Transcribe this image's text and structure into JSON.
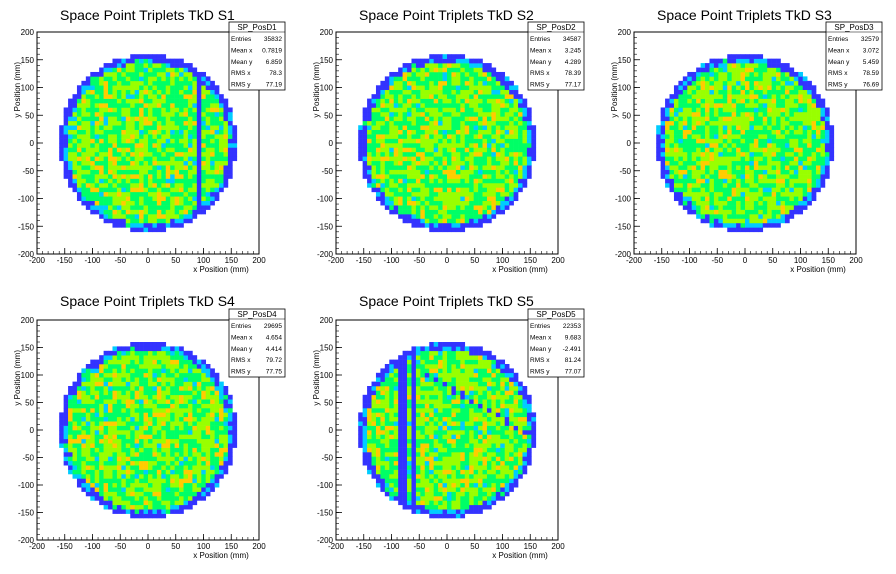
{
  "chart_data": [
    {
      "type": "heatmap",
      "title": "Space Point Triplets TkD S1",
      "xlabel": "x Position (mm)",
      "ylabel": "y Position (mm)",
      "xlim": [
        -200,
        200
      ],
      "ylim": [
        -200,
        200
      ],
      "xticks": [
        -200,
        -150,
        -100,
        -50,
        0,
        50,
        100,
        150,
        200
      ],
      "yticks": [
        -200,
        -150,
        -100,
        -50,
        0,
        50,
        100,
        150,
        200
      ],
      "stats": {
        "name": "SP_PosD1",
        "entries": "35832",
        "mean_x": "0.7819",
        "mean_y": "6.859",
        "rms_x": "78.3",
        "rms_y": "77.19"
      },
      "disk": {
        "center_x": 0,
        "center_y": 0,
        "radius": 160,
        "bin_width": 8
      },
      "features": {
        "lines": [
          {
            "pos": 95,
            "slope": 0,
            "dir": "v"
          }
        ]
      }
    },
    {
      "type": "heatmap",
      "title": "Space Point Triplets TkD S2",
      "xlabel": "x Position (mm)",
      "ylabel": "y Position (mm)",
      "xlim": [
        -200,
        200
      ],
      "ylim": [
        -200,
        200
      ],
      "xticks": [
        -200,
        -150,
        -100,
        -50,
        0,
        50,
        100,
        150,
        200
      ],
      "yticks": [
        -200,
        -150,
        -100,
        -50,
        0,
        50,
        100,
        150,
        200
      ],
      "stats": {
        "name": "SP_PosD2",
        "entries": "34587",
        "mean_x": "3.245",
        "mean_y": "4.289",
        "rms_x": "78.39",
        "rms_y": "77.17"
      },
      "disk": {
        "center_x": 0,
        "center_y": 0,
        "radius": 160,
        "bin_width": 8
      },
      "features": {
        "lines": []
      }
    },
    {
      "type": "heatmap",
      "title": "Space Point Triplets TkD S3",
      "xlabel": "x Position (mm)",
      "ylabel": "y Position (mm)",
      "xlim": [
        -200,
        200
      ],
      "ylim": [
        -200,
        200
      ],
      "xticks": [
        -200,
        -150,
        -100,
        -50,
        0,
        50,
        100,
        150,
        200
      ],
      "yticks": [
        -200,
        -150,
        -100,
        -50,
        0,
        50,
        100,
        150,
        200
      ],
      "stats": {
        "name": "SP_PosD3",
        "entries": "32579",
        "mean_x": "3.072",
        "mean_y": "5.459",
        "rms_x": "78.59",
        "rms_y": "76.69"
      },
      "disk": {
        "center_x": 0,
        "center_y": 0,
        "radius": 160,
        "bin_width": 8
      },
      "features": {
        "lines": []
      }
    },
    {
      "type": "heatmap",
      "title": "Space Point Triplets TkD S4",
      "xlabel": "x Position (mm)",
      "ylabel": "y Position (mm)",
      "xlim": [
        -200,
        200
      ],
      "ylim": [
        -200,
        200
      ],
      "xticks": [
        -200,
        -150,
        -100,
        -50,
        0,
        50,
        100,
        150,
        200
      ],
      "yticks": [
        -200,
        -150,
        -100,
        -50,
        0,
        50,
        100,
        150,
        200
      ],
      "stats": {
        "name": "SP_PosD4",
        "entries": "29695",
        "mean_x": "4.654",
        "mean_y": "4.414",
        "rms_x": "79.72",
        "rms_y": "77.75"
      },
      "disk": {
        "center_x": 0,
        "center_y": 0,
        "radius": 160,
        "bin_width": 8
      },
      "features": {
        "lines": []
      }
    },
    {
      "type": "heatmap",
      "title": "Space Point Triplets TkD S5",
      "xlabel": "x Position (mm)",
      "ylabel": "y Position (mm)",
      "xlim": [
        -200,
        200
      ],
      "ylim": [
        -200,
        200
      ],
      "xticks": [
        -200,
        -150,
        -100,
        -50,
        0,
        50,
        100,
        150,
        200
      ],
      "yticks": [
        -200,
        -150,
        -100,
        -50,
        0,
        50,
        100,
        150,
        200
      ],
      "stats": {
        "name": "SP_PosD5",
        "entries": "22353",
        "mean_x": "9.683",
        "mean_y": "-2.491",
        "rms_x": "81.24",
        "rms_y": "77.07"
      },
      "disk": {
        "center_x": 0,
        "center_y": 0,
        "radius": 160,
        "bin_width": 8
      },
      "features": {
        "lines": [
          {
            "pos": -80,
            "slope": 0,
            "dir": "v"
          },
          {
            "pos": -60,
            "slope": 0,
            "dir": "v"
          },
          {
            "pos": 80,
            "slope": -0.6,
            "dir": "d"
          }
        ]
      }
    }
  ],
  "stat_labels": {
    "entries": "Entries",
    "mean_x": "Mean x",
    "mean_y": "Mean y",
    "rms_x": "RMS x",
    "rms_y": "RMS y"
  },
  "palette": [
    "#3333ff",
    "#00ccff",
    "#00ff66",
    "#99ff00",
    "#ffcc00",
    "#ff3300"
  ]
}
